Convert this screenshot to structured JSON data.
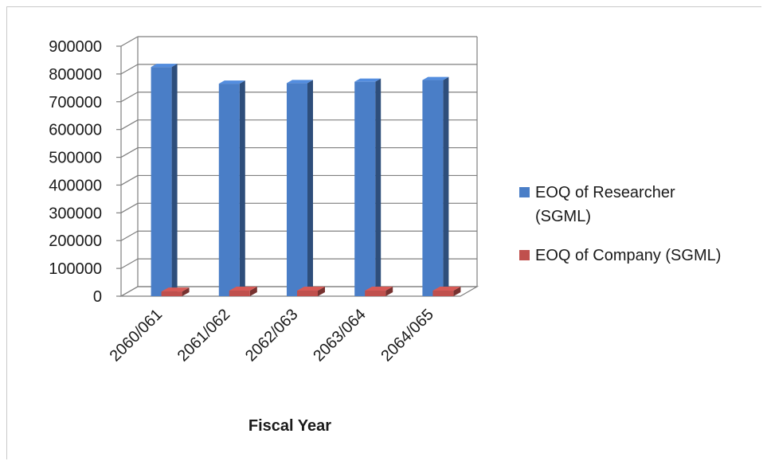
{
  "chart_data": {
    "type": "bar",
    "categories": [
      "2060/061",
      "2061/062",
      "2062/063",
      "2063/064",
      "2064/065"
    ],
    "series": [
      {
        "name": "EOQ of Researcher (SGML)",
        "values": [
          825000,
          765000,
          767000,
          772000,
          778000
        ],
        "color": "#4a7ec7"
      },
      {
        "name": "EOQ of Company (SGML)",
        "values": [
          17000,
          20000,
          20000,
          20000,
          20000
        ],
        "color": "#c0504d"
      }
    ],
    "xlabel": "Fiscal Year",
    "ylabel": "",
    "ylim": [
      0,
      900000
    ],
    "yticks": [
      "0",
      "100000",
      "200000",
      "300000",
      "400000",
      "500000",
      "600000",
      "700000",
      "800000",
      "900000"
    ],
    "grid": true,
    "legend_position": "right"
  }
}
